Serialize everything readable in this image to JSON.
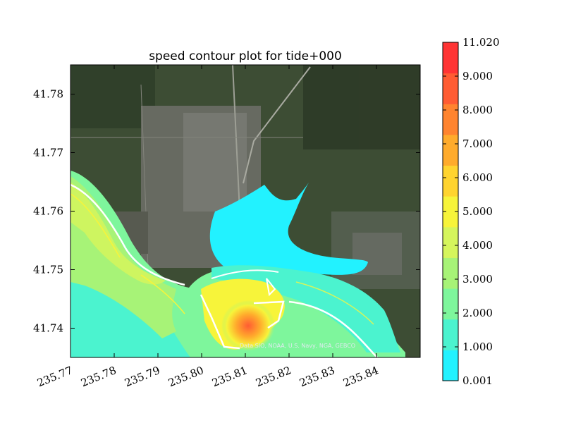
{
  "chart_data": {
    "type": "heatmap",
    "title": "speed contour plot for tide+000",
    "xlabel": "",
    "ylabel": "",
    "x_ticks": [
      235.77,
      235.78,
      235.79,
      235.8,
      235.81,
      235.82,
      235.83,
      235.84
    ],
    "x_tick_labels": [
      "235.77",
      "235.78",
      "235.79",
      "235.80",
      "235.81",
      "235.82",
      "235.83",
      "235.84"
    ],
    "y_ticks": [
      41.74,
      41.75,
      41.76,
      41.77,
      41.78
    ],
    "y_tick_labels": [
      "41.74",
      "41.75",
      "41.76",
      "41.77",
      "41.78"
    ],
    "xlim": [
      235.77,
      235.85
    ],
    "ylim": [
      41.735,
      41.785
    ],
    "colorbar": {
      "levels": [
        0.001,
        1.0,
        2.0,
        3.0,
        4.0,
        5.0,
        6.0,
        7.0,
        8.0,
        9.0,
        11.02
      ],
      "labels": [
        "0.001",
        "1.000",
        "2.000",
        "3.000",
        "4.000",
        "5.000",
        "6.000",
        "7.000",
        "8.000",
        "9.000",
        "11.020"
      ],
      "colors": [
        "#22f2ff",
        "#4bf3cf",
        "#7ef69c",
        "#a7f377",
        "#d5f55c",
        "#f7f43a",
        "#ffd42f",
        "#ffab2c",
        "#ff842f",
        "#ff5c33",
        "#ff3434"
      ]
    },
    "basemap_attribution": "Data SIO, NOAA, U.S. Navy, NGA, GEBCO",
    "grid": false
  }
}
